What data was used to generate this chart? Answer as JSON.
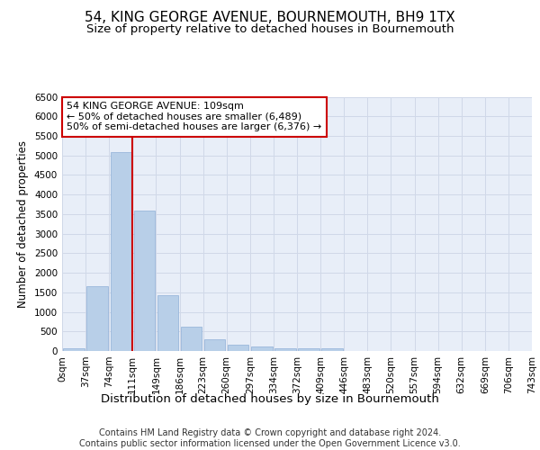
{
  "title": "54, KING GEORGE AVENUE, BOURNEMOUTH, BH9 1TX",
  "subtitle": "Size of property relative to detached houses in Bournemouth",
  "xlabel": "Distribution of detached houses by size in Bournemouth",
  "ylabel": "Number of detached properties",
  "bar_color": "#b8cfe8",
  "bar_edge_color": "#8fb0d8",
  "vline_color": "#cc0000",
  "vline_x_index": 2.5,
  "annotation_text": "54 KING GEORGE AVENUE: 109sqm\n← 50% of detached houses are smaller (6,489)\n50% of semi-detached houses are larger (6,376) →",
  "annotation_box_color": "#ffffff",
  "annotation_box_edgecolor": "#cc0000",
  "bar_values": [
    75,
    1650,
    5075,
    3600,
    1420,
    620,
    290,
    155,
    120,
    80,
    65,
    60,
    0,
    0,
    0,
    0,
    0,
    0,
    0,
    0
  ],
  "x_tick_labels": [
    "0sqm",
    "37sqm",
    "74sqm",
    "111sqm",
    "149sqm",
    "186sqm",
    "223sqm",
    "260sqm",
    "297sqm",
    "334sqm",
    "372sqm",
    "409sqm",
    "446sqm",
    "483sqm",
    "520sqm",
    "557sqm",
    "594sqm",
    "632sqm",
    "669sqm",
    "706sqm",
    "743sqm"
  ],
  "ylim": [
    0,
    6500
  ],
  "yticks": [
    0,
    500,
    1000,
    1500,
    2000,
    2500,
    3000,
    3500,
    4000,
    4500,
    5000,
    5500,
    6000,
    6500
  ],
  "grid_color": "#d0d8e8",
  "background_color": "#e8eef8",
  "footer_text": "Contains HM Land Registry data © Crown copyright and database right 2024.\nContains public sector information licensed under the Open Government Licence v3.0.",
  "fig_bg_color": "#ffffff",
  "title_fontsize": 11,
  "subtitle_fontsize": 9.5,
  "xlabel_fontsize": 9.5,
  "ylabel_fontsize": 8.5,
  "tick_fontsize": 7.5,
  "footer_fontsize": 7
}
